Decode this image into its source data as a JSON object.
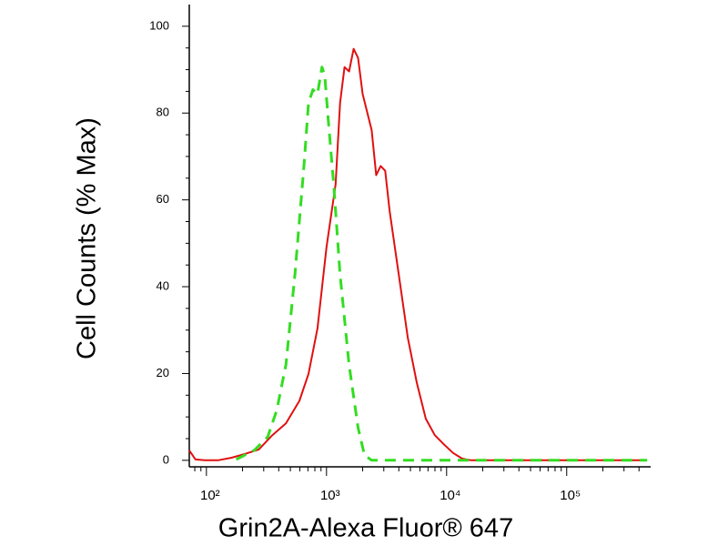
{
  "chart_data": {
    "type": "line",
    "x_label": "Grin2A-Alexa Fluor® 647",
    "y_label": "Cell Counts (% Max)",
    "xscale": "log",
    "xlim": [
      72,
      500000
    ],
    "ylim": [
      -1.5,
      105
    ],
    "xticks": [
      {
        "value": 100,
        "label": "10²"
      },
      {
        "value": 1000,
        "label": "10³"
      },
      {
        "value": 10000,
        "label": "10⁴"
      },
      {
        "value": 100000,
        "label": "10⁵"
      }
    ],
    "xminorticks": [
      80,
      90,
      200,
      300,
      400,
      500,
      600,
      700,
      800,
      900,
      2000,
      3000,
      4000,
      5000,
      6000,
      7000,
      8000,
      9000,
      20000,
      30000,
      40000,
      50000,
      60000,
      70000,
      80000,
      90000,
      200000,
      300000,
      400000
    ],
    "yticks": [
      0,
      20,
      40,
      60,
      80,
      100
    ],
    "yminorticks": [
      5,
      10,
      15,
      25,
      30,
      35,
      45,
      50,
      55,
      65,
      70,
      75,
      85,
      90,
      95
    ],
    "series": [
      {
        "color": "#e01010",
        "dash": false,
        "x": [
          72,
          81,
          97,
          125,
          162,
          211,
          273,
          354,
          459,
          595,
          708,
          841,
          1000,
          1190,
          1297,
          1413,
          1541,
          1682,
          1832,
          2000,
          2377,
          2594,
          2826,
          3083,
          3357,
          3999,
          4753,
          5649,
          6714,
          7980,
          9484,
          11300,
          13430,
          15960,
          22550,
          63800,
          467000
        ],
        "values": [
          2.3,
          0.2,
          0,
          0,
          0.6,
          1.5,
          2.5,
          5.8,
          8.5,
          13.7,
          19.9,
          30.4,
          49.1,
          63.6,
          82.3,
          90.6,
          89.6,
          94.8,
          92.7,
          84.4,
          76.1,
          65.7,
          67.8,
          66.7,
          57.4,
          42.8,
          28.3,
          17.9,
          9.6,
          5.8,
          3.7,
          1.7,
          0.4,
          0,
          0,
          0,
          0
        ]
      },
      {
        "color": "#33dd22",
        "dash": true,
        "x": [
          177,
          250,
          324,
          386,
          459,
          546,
          649,
          708,
          771,
          841,
          917,
          967,
          1035,
          1148,
          1297,
          1541,
          1832,
          2070,
          2377,
          7980,
          467000
        ],
        "values": [
          0.2,
          2.3,
          5.4,
          11.6,
          22,
          42.8,
          67.8,
          82.3,
          85.4,
          84.4,
          90.6,
          88.6,
          78.2,
          63.6,
          42.8,
          22,
          7.5,
          1.2,
          0,
          0,
          0
        ]
      }
    ]
  }
}
